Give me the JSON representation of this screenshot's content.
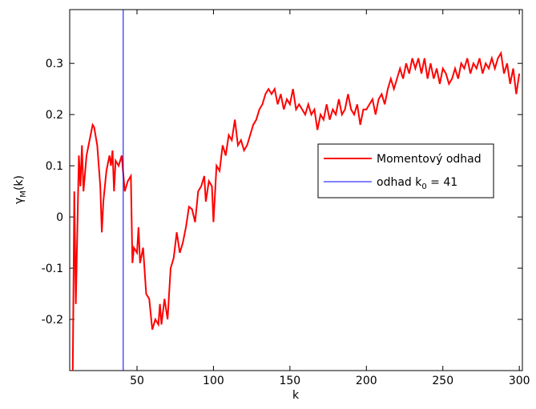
{
  "chart_data": {
    "type": "line",
    "xlabel": "k",
    "ylabel": {
      "main": "γ",
      "sub": "M",
      "suffix": "(k)"
    },
    "x": [
      8,
      9,
      10,
      12,
      13,
      14,
      15,
      17,
      19,
      21,
      22,
      24,
      26,
      27,
      28,
      30,
      32,
      33,
      34,
      35,
      36,
      38,
      40,
      42,
      44,
      46,
      47,
      48,
      50,
      51,
      52,
      54,
      56,
      58,
      60,
      62,
      64,
      65,
      66,
      68,
      70,
      72,
      74,
      76,
      78,
      80,
      82,
      84,
      86,
      88,
      90,
      92,
      94,
      95,
      97,
      99,
      100,
      102,
      104,
      106,
      108,
      110,
      112,
      114,
      116,
      118,
      120,
      122,
      124,
      126,
      128,
      130,
      132,
      134,
      136,
      138,
      140,
      142,
      144,
      146,
      148,
      150,
      152,
      154,
      156,
      158,
      160,
      162,
      164,
      166,
      168,
      170,
      172,
      174,
      176,
      178,
      180,
      182,
      184,
      186,
      188,
      190,
      192,
      194,
      196,
      198,
      200,
      202,
      204,
      206,
      208,
      210,
      212,
      214,
      216,
      218,
      220,
      222,
      224,
      226,
      228,
      230,
      232,
      234,
      236,
      238,
      240,
      242,
      244,
      246,
      248,
      250,
      252,
      254,
      256,
      258,
      260,
      262,
      264,
      266,
      268,
      270,
      272,
      274,
      276,
      278,
      280,
      282,
      284,
      286,
      288,
      290,
      292,
      294,
      296,
      298,
      300
    ],
    "series": [
      {
        "name": "Momentový odhad",
        "color": "#ff0000",
        "values": [
          -0.3,
          0.05,
          -0.17,
          0.12,
          0.06,
          0.14,
          0.05,
          0.12,
          0.15,
          0.18,
          0.175,
          0.14,
          0.06,
          -0.03,
          0.03,
          0.09,
          0.12,
          0.1,
          0.13,
          0.05,
          0.11,
          0.1,
          0.12,
          0.05,
          0.07,
          0.08,
          -0.09,
          -0.06,
          -0.07,
          -0.02,
          -0.09,
          -0.06,
          -0.15,
          -0.16,
          -0.22,
          -0.2,
          -0.21,
          -0.17,
          -0.21,
          -0.16,
          -0.2,
          -0.1,
          -0.08,
          -0.03,
          -0.07,
          -0.05,
          -0.02,
          0.02,
          0.015,
          -0.01,
          0.05,
          0.06,
          0.08,
          0.03,
          0.07,
          0.06,
          -0.01,
          0.1,
          0.09,
          0.14,
          0.12,
          0.16,
          0.15,
          0.19,
          0.14,
          0.15,
          0.13,
          0.14,
          0.16,
          0.18,
          0.19,
          0.21,
          0.22,
          0.24,
          0.25,
          0.24,
          0.25,
          0.22,
          0.24,
          0.21,
          0.23,
          0.22,
          0.25,
          0.21,
          0.22,
          0.21,
          0.2,
          0.22,
          0.2,
          0.21,
          0.17,
          0.2,
          0.19,
          0.22,
          0.19,
          0.21,
          0.2,
          0.23,
          0.2,
          0.21,
          0.24,
          0.21,
          0.2,
          0.22,
          0.18,
          0.21,
          0.21,
          0.22,
          0.23,
          0.2,
          0.23,
          0.24,
          0.22,
          0.25,
          0.27,
          0.25,
          0.27,
          0.29,
          0.27,
          0.3,
          0.28,
          0.31,
          0.29,
          0.31,
          0.28,
          0.31,
          0.27,
          0.3,
          0.27,
          0.29,
          0.26,
          0.29,
          0.28,
          0.26,
          0.27,
          0.29,
          0.27,
          0.3,
          0.29,
          0.31,
          0.28,
          0.3,
          0.29,
          0.31,
          0.28,
          0.3,
          0.29,
          0.31,
          0.29,
          0.31,
          0.32,
          0.28,
          0.3,
          0.26,
          0.29,
          0.24,
          0.28
        ]
      },
      {
        "name": "odhad k",
        "name_sub": "0",
        "name_suffix": " = 41",
        "color": "#0000ff",
        "x": 41
      }
    ],
    "xlim": [
      6,
      302
    ],
    "ylim": [
      -0.3,
      0.405
    ],
    "xticks": [
      50,
      100,
      150,
      200,
      250,
      300
    ],
    "yticks": [
      -0.2,
      -0.1,
      0,
      0.1,
      0.2,
      0.3
    ],
    "legend": "right"
  }
}
